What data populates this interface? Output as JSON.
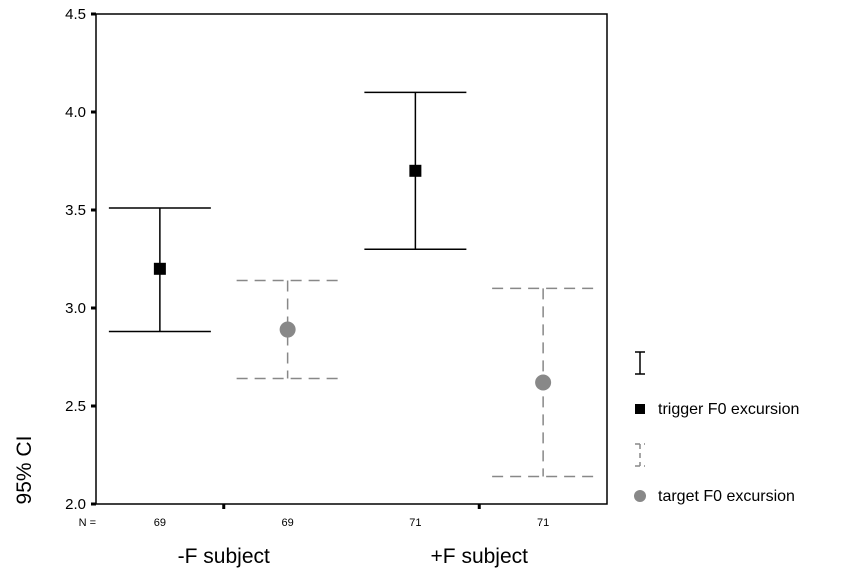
{
  "chart_data": {
    "type": "errorbar",
    "ylabel": "95% CI",
    "ylim": [
      2.0,
      4.5
    ],
    "yticks": [
      "2.0",
      "2.5",
      "3.0",
      "3.5",
      "4.0",
      "4.5"
    ],
    "categories": [
      "-F subject",
      "+F subject"
    ],
    "n_prefix": "N =",
    "series": [
      {
        "name": "trigger F0 excursion",
        "marker": "square",
        "line_style": "solid",
        "color": "#000000",
        "points": [
          {
            "category": "-F subject",
            "mean": 3.2,
            "lower": 2.88,
            "upper": 3.51,
            "n": "69"
          },
          {
            "category": "+F subject",
            "mean": 3.7,
            "lower": 3.3,
            "upper": 4.1,
            "n": "71"
          }
        ]
      },
      {
        "name": "target F0 excursion",
        "marker": "circle",
        "line_style": "dashed",
        "color": "#888888",
        "points": [
          {
            "category": "-F subject",
            "mean": 2.89,
            "lower": 2.64,
            "upper": 3.14,
            "n": "69"
          },
          {
            "category": "+F subject",
            "mean": 2.62,
            "lower": 2.14,
            "upper": 3.1,
            "n": "71"
          }
        ]
      }
    ],
    "legend_position": "right"
  }
}
